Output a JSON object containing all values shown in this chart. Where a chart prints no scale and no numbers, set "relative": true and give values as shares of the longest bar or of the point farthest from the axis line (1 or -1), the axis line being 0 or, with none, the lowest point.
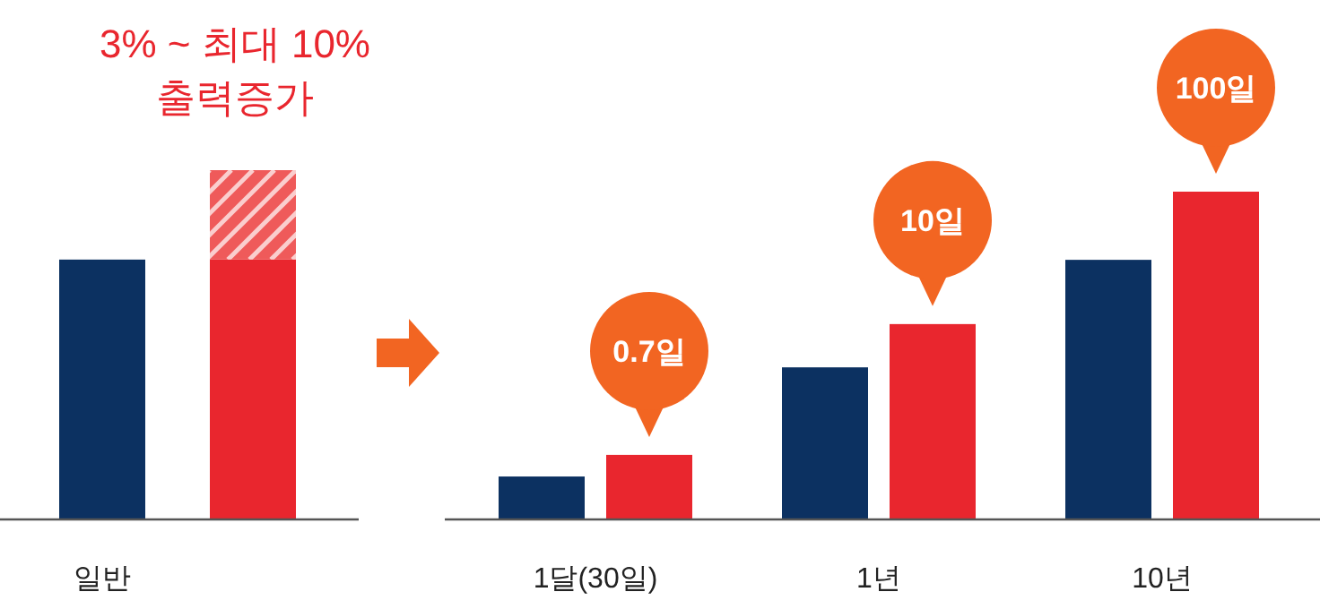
{
  "chart_data": [
    {
      "type": "bar",
      "relative": true,
      "stacked": true,
      "categories": [
        "일반",
        null
      ],
      "series": [
        {
          "colors": [
            "#0c3161",
            "#e9262e"
          ],
          "values": [
            0.744,
            0.744
          ]
        },
        {
          "color": "#ef5a5a",
          "values": [
            null,
            0.256
          ]
        }
      ],
      "annotations": [
        "3% ~ 최대 10%",
        "출력증가"
      ]
    },
    {
      "type": "bar",
      "relative": true,
      "categories": [
        "1달(30일)",
        "1년",
        "10년"
      ],
      "series": [
        {
          "color": "#0c3161",
          "values": [
            0.131,
            0.464,
            0.792
          ]
        },
        {
          "color": "#e9262e",
          "values": [
            0.197,
            0.596,
            1
          ]
        }
      ],
      "annotations": [
        "0.7일",
        "10일",
        "100일"
      ]
    }
  ]
}
